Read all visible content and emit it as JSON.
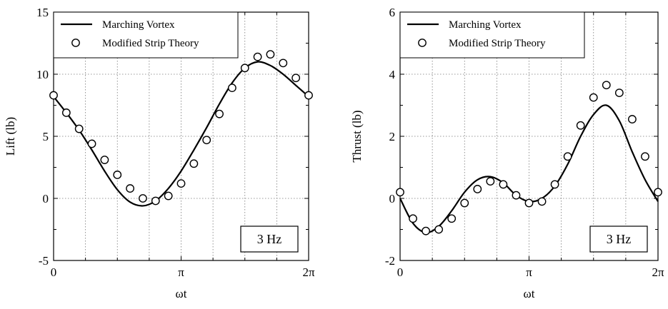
{
  "chart_data": [
    {
      "type": "line",
      "xlabel": "ωt",
      "ylabel": "Lift (lb)",
      "xlim": [
        0,
        6.2832
      ],
      "ylim": [
        -5,
        15
      ],
      "x_tick_labels": [
        "0",
        "π",
        "2π"
      ],
      "y_tick_labels": [
        "-5",
        "0",
        "5",
        "10",
        "15"
      ],
      "grid": true,
      "legend_position": "top-left",
      "annotation": "3 Hz",
      "series": [
        {
          "name": "Marching Vortex",
          "style": "line",
          "x": [
            0,
            0.3142,
            0.6283,
            0.9425,
            1.2566,
            1.5708,
            1.885,
            2.1991,
            2.5133,
            2.8274,
            3.1416,
            3.4558,
            3.7699,
            4.0841,
            4.3982,
            4.7124,
            5.0265,
            5.3407,
            5.6549,
            5.969,
            6.2832
          ],
          "y": [
            8.2,
            6.9,
            5.5,
            3.9,
            2.2,
            0.7,
            -0.3,
            -0.6,
            -0.2,
            0.8,
            2.2,
            3.9,
            5.7,
            7.6,
            9.3,
            10.5,
            11.0,
            10.7,
            10.0,
            9.1,
            8.2
          ]
        },
        {
          "name": "Modified Strip Theory",
          "style": "marker",
          "x": [
            0,
            0.3142,
            0.6283,
            0.9425,
            1.2566,
            1.5708,
            1.885,
            2.1991,
            2.5133,
            2.8274,
            3.1416,
            3.4558,
            3.7699,
            4.0841,
            4.3982,
            4.7124,
            5.0265,
            5.3407,
            5.6549,
            5.969,
            6.2832
          ],
          "y": [
            8.3,
            6.9,
            5.6,
            4.4,
            3.1,
            1.9,
            0.8,
            0.0,
            -0.2,
            0.2,
            1.2,
            2.8,
            4.7,
            6.8,
            8.9,
            10.5,
            11.4,
            11.6,
            10.9,
            9.7,
            8.3
          ]
        }
      ]
    },
    {
      "type": "line",
      "xlabel": "ωt",
      "ylabel": "Thrust (lb)",
      "xlim": [
        0,
        6.2832
      ],
      "ylim": [
        -2,
        6
      ],
      "x_tick_labels": [
        "0",
        "π",
        "2π"
      ],
      "y_tick_labels": [
        "-2",
        "0",
        "2",
        "4",
        "6"
      ],
      "grid": true,
      "legend_position": "top-left",
      "annotation": "3 Hz",
      "series": [
        {
          "name": "Marching Vortex",
          "style": "line",
          "x": [
            0,
            0.3142,
            0.6283,
            0.9425,
            1.2566,
            1.5708,
            1.885,
            2.1991,
            2.5133,
            2.8274,
            3.1416,
            3.4558,
            3.7699,
            4.0841,
            4.3982,
            4.7124,
            5.0265,
            5.3407,
            5.6549,
            5.969,
            6.2832
          ],
          "y": [
            0.0,
            -0.8,
            -1.1,
            -0.9,
            -0.4,
            0.2,
            0.6,
            0.7,
            0.5,
            0.1,
            -0.1,
            0.0,
            0.4,
            1.1,
            2.0,
            2.7,
            3.0,
            2.5,
            1.5,
            0.6,
            -0.1
          ]
        },
        {
          "name": "Modified Strip Theory",
          "style": "marker",
          "x": [
            0,
            0.3142,
            0.6283,
            0.9425,
            1.2566,
            1.5708,
            1.885,
            2.1991,
            2.5133,
            2.8274,
            3.1416,
            3.4558,
            3.7699,
            4.0841,
            4.3982,
            4.7124,
            5.0265,
            5.3407,
            5.6549,
            5.969,
            6.2832
          ],
          "y": [
            0.2,
            -0.65,
            -1.05,
            -1.0,
            -0.65,
            -0.15,
            0.3,
            0.55,
            0.45,
            0.1,
            -0.15,
            -0.1,
            0.45,
            1.35,
            2.35,
            3.25,
            3.65,
            3.4,
            2.55,
            1.35,
            0.2
          ]
        }
      ]
    }
  ]
}
